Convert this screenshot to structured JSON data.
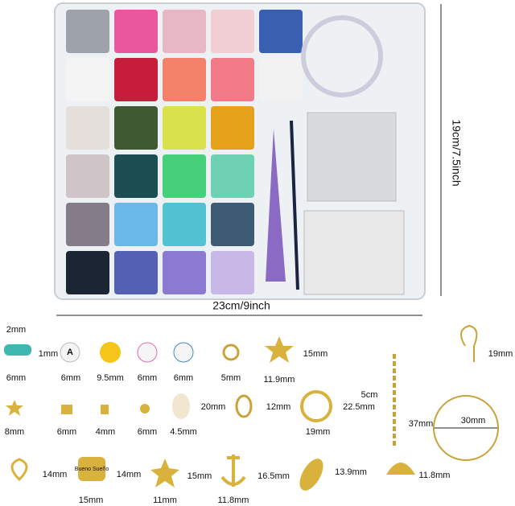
{
  "box": {
    "height_label": "19cm/7.5inch",
    "width_label": "23cm/9inch"
  },
  "labels": [
    "2mm",
    "1mm",
    "6mm",
    "6mm",
    "9.5mm",
    "6mm",
    "6mm",
    "5mm",
    "15mm",
    "11.9mm",
    "19mm",
    "8mm",
    "6mm",
    "4mm",
    "6mm",
    "4.5mm",
    "20mm",
    "12mm",
    "22.5mm",
    "19mm",
    "5cm",
    "37mm",
    "30mm",
    "14mm",
    "15mm",
    "14mm",
    "11mm",
    "15mm",
    "11.8mm",
    "16.5mm",
    "13.9mm",
    "11.8mm"
  ],
  "charm_text": "Bueno Sueño",
  "bead_letter": "A"
}
